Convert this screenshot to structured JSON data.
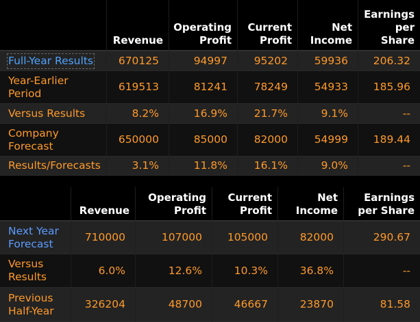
{
  "colors": {
    "background": "#000000",
    "value": "#ff9a2a",
    "header": "#ffffff",
    "selected_label": "#4fa3ff",
    "forecast_label": "#5b9cff"
  },
  "table1": {
    "headers": [
      "Revenue",
      "Operating\nProfit",
      "Current\nProfit",
      "Net\nIncome",
      "Earnings\nper\nShare"
    ],
    "rows": [
      {
        "label": "Full-Year Results",
        "values": [
          "670125",
          "94997",
          "95202",
          "59936",
          "206.32"
        ]
      },
      {
        "label": "Year-Earlier\nPeriod",
        "values": [
          "619513",
          "81241",
          "78249",
          "54933",
          "185.96"
        ]
      },
      {
        "label": "Versus Results",
        "values": [
          "8.2%",
          "16.9%",
          "21.7%",
          "9.1%",
          "--"
        ]
      },
      {
        "label": "Company\nForecast",
        "values": [
          "650000",
          "85000",
          "82000",
          "54999",
          "189.44"
        ]
      },
      {
        "label": "Results/Forecasts",
        "values": [
          "3.1%",
          "11.8%",
          "16.1%",
          "9.0%",
          "--"
        ]
      }
    ]
  },
  "table2": {
    "headers": [
      "Revenue",
      "Operating\nProfit",
      "Current\nProfit",
      "Net\nIncome",
      "Earnings\nper Share"
    ],
    "rows": [
      {
        "label": "Next Year\nForecast",
        "values": [
          "710000",
          "107000",
          "105000",
          "82000",
          "290.67"
        ]
      },
      {
        "label": "Versus\nResults",
        "values": [
          "6.0%",
          "12.6%",
          "10.3%",
          "36.8%",
          "--"
        ]
      },
      {
        "label": "Previous\nHalf-Year",
        "values": [
          "326204",
          "48700",
          "46667",
          "23870",
          "81.58"
        ]
      }
    ]
  }
}
